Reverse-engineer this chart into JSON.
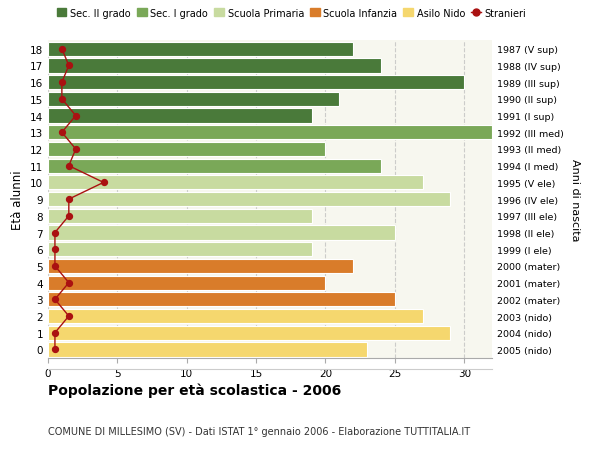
{
  "ages": [
    0,
    1,
    2,
    3,
    4,
    5,
    6,
    7,
    8,
    9,
    10,
    11,
    12,
    13,
    14,
    15,
    16,
    17,
    18
  ],
  "bar_values": [
    23,
    29,
    27,
    25,
    20,
    22,
    19,
    25,
    19,
    29,
    27,
    24,
    20,
    32,
    19,
    21,
    30,
    24,
    22
  ],
  "right_labels": [
    "2005 (nido)",
    "2004 (nido)",
    "2003 (nido)",
    "2002 (mater)",
    "2001 (mater)",
    "2000 (mater)",
    "1999 (I ele)",
    "1998 (II ele)",
    "1997 (III ele)",
    "1996 (IV ele)",
    "1995 (V ele)",
    "1994 (I med)",
    "1993 (II med)",
    "1992 (III med)",
    "1991 (I sup)",
    "1990 (II sup)",
    "1989 (III sup)",
    "1988 (IV sup)",
    "1987 (V sup)"
  ],
  "bar_colors": [
    "#f5d76e",
    "#f5d76e",
    "#f5d76e",
    "#d97c2a",
    "#d97c2a",
    "#d97c2a",
    "#c8dba0",
    "#c8dba0",
    "#c8dba0",
    "#c8dba0",
    "#c8dba0",
    "#7aa858",
    "#7aa858",
    "#7aa858",
    "#4a7a3a",
    "#4a7a3a",
    "#4a7a3a",
    "#4a7a3a",
    "#4a7a3a"
  ],
  "stranieri_values": [
    0.5,
    0.5,
    1.5,
    0.5,
    1.5,
    0.5,
    0.5,
    0.5,
    1.5,
    1.5,
    4,
    1.5,
    2,
    1,
    2,
    1,
    1,
    1.5,
    1
  ],
  "legend_labels": [
    "Sec. II grado",
    "Sec. I grado",
    "Scuola Primaria",
    "Scuola Infanzia",
    "Asilo Nido",
    "Stranieri"
  ],
  "legend_colors": [
    "#4a7a3a",
    "#7aa858",
    "#c8dba0",
    "#d97c2a",
    "#f5d76e",
    "#aa1111"
  ],
  "ylabel": "Età alunni",
  "right_ylabel": "Anni di nascita",
  "title": "Popolazione per età scolastica - 2006",
  "subtitle": "COMUNE DI MILLESIMO (SV) - Dati ISTAT 1° gennaio 2006 - Elaborazione TUTTITALIA.IT",
  "xlim": [
    0,
    32
  ],
  "xticks": [
    0,
    5,
    10,
    15,
    20,
    25,
    30
  ],
  "bg_color": "#ffffff",
  "ax_bg_color": "#f7f7ef"
}
